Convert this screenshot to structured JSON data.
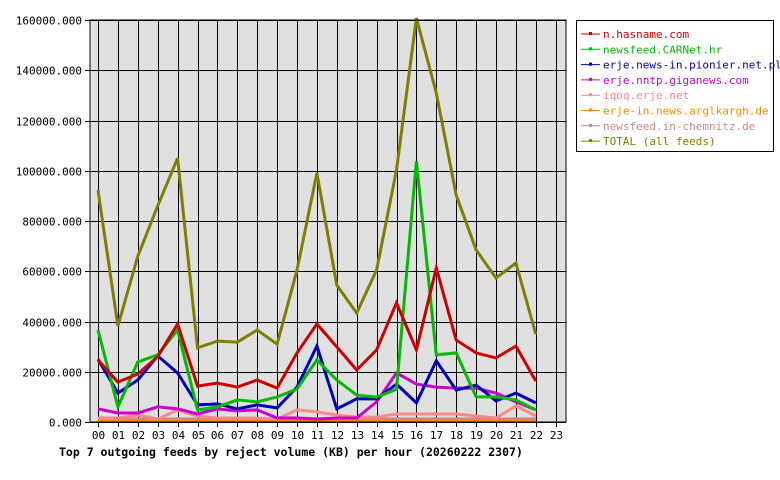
{
  "chart_data": {
    "type": "line",
    "title": "Top 7 outgoing feeds by reject volume (KB) per hour (20260222 2307)",
    "xlabel": "",
    "ylabel": "",
    "ylim": [
      0,
      160000
    ],
    "yticks": [
      "0.000",
      "20000.000",
      "40000.000",
      "60000.000",
      "80000.000",
      "100000.000",
      "120000.000",
      "140000.000",
      "160000.000"
    ],
    "x": [
      "00",
      "01",
      "02",
      "03",
      "04",
      "05",
      "06",
      "07",
      "08",
      "09",
      "10",
      "11",
      "12",
      "13",
      "14",
      "15",
      "16",
      "17",
      "18",
      "19",
      "20",
      "21",
      "22",
      "23"
    ],
    "grid": true,
    "legend_position": "right",
    "series": [
      {
        "name": "n.hasname.com",
        "color": "#cc0000",
        "values": [
          24700,
          15900,
          19100,
          26000,
          39000,
          14300,
          15500,
          13900,
          16700,
          13500,
          27500,
          39000,
          29900,
          20700,
          28700,
          47400,
          28700,
          61300,
          32600,
          27500,
          25500,
          30200,
          16300
        ]
      },
      {
        "name": "newsfeed.CARNet.hr",
        "color": "#00bb00",
        "values": [
          36600,
          6000,
          23900,
          26700,
          36600,
          4800,
          6000,
          8800,
          8000,
          10000,
          13100,
          24700,
          16700,
          10700,
          9900,
          13000,
          103900,
          26700,
          27500,
          10000,
          10000,
          8800,
          4800
        ]
      },
      {
        "name": "erje.news-in.pionier.net.pl",
        "color": "#0000bb",
        "values": [
          25000,
          11500,
          16700,
          26300,
          19500,
          6800,
          7200,
          5200,
          6800,
          5600,
          13900,
          30200,
          5200,
          9200,
          9200,
          15100,
          7600,
          24300,
          12700,
          14700,
          8400,
          11500,
          7600
        ]
      },
      {
        "name": "erje.nntp.giganews.com",
        "color": "#cc00cc",
        "values": [
          5200,
          3600,
          3600,
          6000,
          5200,
          3200,
          5200,
          4400,
          4800,
          1600,
          1600,
          1200,
          1600,
          1600,
          8000,
          19500,
          15100,
          13900,
          13500,
          13500,
          11500,
          8000,
          4800
        ]
      },
      {
        "name": "iqoq.erje.net",
        "color": "#ff8888",
        "values": [
          1600,
          1600,
          2800,
          1200,
          4800,
          2400,
          1600,
          1600,
          1600,
          1200,
          4800,
          4000,
          2800,
          2000,
          2000,
          3200,
          3200,
          3200,
          3200,
          2400,
          1600,
          6400,
          2400
        ]
      },
      {
        "name": "erje-in.news.arglkargh.de",
        "color": "#ff8800",
        "values": [
          400,
          400,
          400,
          400,
          400,
          400,
          400,
          400,
          400,
          400,
          400,
          400,
          400,
          400,
          400,
          400,
          400,
          400,
          400,
          400,
          400,
          400,
          400
        ]
      },
      {
        "name": "newsfeed.in-chemnitz.de",
        "color": "#cc8888",
        "values": [
          1200,
          1200,
          1200,
          1200,
          1200,
          1200,
          1200,
          1200,
          1200,
          1200,
          1200,
          1200,
          1200,
          1200,
          1200,
          1200,
          1200,
          1200,
          1200,
          1200,
          1200,
          1200,
          1200
        ]
      },
      {
        "name": "TOTAL (all feeds)",
        "color": "#808000",
        "values": [
          92300,
          38200,
          66000,
          86000,
          105000,
          29500,
          32200,
          31800,
          36600,
          31000,
          60500,
          99100,
          54500,
          43400,
          60500,
          100300,
          160800,
          130900,
          90300,
          68500,
          57300,
          63300,
          35000
        ]
      }
    ]
  },
  "legend": {
    "items": [
      "n.hasname.com",
      "newsfeed.CARNet.hr",
      "erje.news-in.pionier.net.pl",
      "erje.nntp.giganews.com",
      "iqoq.erje.net",
      "erje-in.news.arglkargh.de",
      "newsfeed.in-chemnitz.de",
      "TOTAL (all feeds)"
    ]
  },
  "colors": {
    "plot_background": "#e0e0e0",
    "grid": "#000000",
    "legend_border": "#000000"
  }
}
